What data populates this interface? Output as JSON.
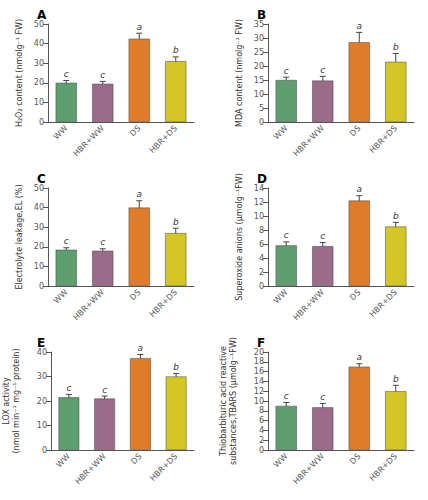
{
  "chart_data": [
    {
      "type": "bar",
      "title": "A",
      "ylabel": "H₂O₂ content (nmolg⁻¹ FW)",
      "categories": [
        "WW",
        "HBR+WW",
        "DS",
        "HBR+DS"
      ],
      "values": [
        20.0,
        19.5,
        42.5,
        31.0
      ],
      "errors": [
        1.2,
        1.2,
        2.8,
        2.2
      ],
      "annotations": [
        "c",
        "c",
        "a",
        "b"
      ],
      "colors": [
        "#5f9e6e",
        "#9b6b8a",
        "#e07b2a",
        "#d4c625"
      ],
      "ylim": [
        0,
        50
      ],
      "yticks": [
        0,
        10,
        20,
        30,
        40,
        50
      ],
      "grid": false
    },
    {
      "type": "bar",
      "title": "B",
      "ylabel": "MDA content (nmolg⁻¹ FW)",
      "categories": [
        "WW",
        "HBR+WW",
        "DS",
        "HBR+DS"
      ],
      "values": [
        15.0,
        14.8,
        28.5,
        21.5
      ],
      "errors": [
        1.0,
        1.5,
        3.5,
        3.0
      ],
      "annotations": [
        "c",
        "c",
        "a",
        "b"
      ],
      "colors": [
        "#5f9e6e",
        "#9b6b8a",
        "#e07b2a",
        "#d4c625"
      ],
      "ylim": [
        0,
        35
      ],
      "yticks": [
        0,
        5,
        10,
        15,
        20,
        25,
        30,
        35
      ],
      "grid": false
    },
    {
      "type": "bar",
      "title": "C",
      "ylabel": "Electrolyte leakage,EL (%)",
      "categories": [
        "WW",
        "HBR+WW",
        "DS",
        "HBR+DS"
      ],
      "values": [
        18.5,
        18.0,
        40.0,
        27.0
      ],
      "errors": [
        1.0,
        1.0,
        3.5,
        2.5
      ],
      "annotations": [
        "c",
        "c",
        "a",
        "b"
      ],
      "colors": [
        "#5f9e6e",
        "#9b6b8a",
        "#e07b2a",
        "#d4c625"
      ],
      "ylim": [
        0,
        50
      ],
      "yticks": [
        0,
        10,
        20,
        30,
        40,
        50
      ],
      "grid": false
    },
    {
      "type": "bar",
      "title": "D",
      "ylabel": "Superoxide anions (μmolg⁻¹FW)",
      "categories": [
        "WW",
        "HBR+WW",
        "DS",
        "HBR+DS"
      ],
      "values": [
        5.8,
        5.7,
        12.2,
        8.5
      ],
      "errors": [
        0.5,
        0.5,
        0.7,
        0.6
      ],
      "annotations": [
        "c",
        "c",
        "a",
        "b"
      ],
      "colors": [
        "#5f9e6e",
        "#9b6b8a",
        "#e07b2a",
        "#d4c625"
      ],
      "ylim": [
        0,
        14
      ],
      "yticks": [
        0,
        2,
        4,
        6,
        8,
        10,
        12,
        14
      ],
      "grid": false
    },
    {
      "type": "bar",
      "title": "E",
      "ylabel": "LOX activity\n(nmol min⁻¹ mg⁻¹ protein)",
      "categories": [
        "WW",
        "HBR+WW",
        "DS",
        "HBR+DS"
      ],
      "values": [
        21.5,
        21.0,
        37.5,
        30.0
      ],
      "errors": [
        1.2,
        1.0,
        1.5,
        1.2
      ],
      "annotations": [
        "c",
        "c",
        "a",
        "b"
      ],
      "colors": [
        "#5f9e6e",
        "#9b6b8a",
        "#e07b2a",
        "#d4c625"
      ],
      "ylim": [
        0,
        40
      ],
      "yticks": [
        0,
        10,
        20,
        30,
        40
      ],
      "grid": false
    },
    {
      "type": "bar",
      "title": "F",
      "ylabel": "Thiobarbituric acid reactive\nsubstances,TBARS (μmolg⁻¹FW)",
      "categories": [
        "WW",
        "HBR+WW",
        "DS",
        "HBR+DS"
      ],
      "values": [
        9.0,
        8.7,
        17.0,
        12.0
      ],
      "errors": [
        0.7,
        0.8,
        0.6,
        1.2
      ],
      "annotations": [
        "c",
        "c",
        "a",
        "b"
      ],
      "colors": [
        "#5f9e6e",
        "#9b6b8a",
        "#e07b2a",
        "#d4c625"
      ],
      "ylim": [
        0,
        20
      ],
      "yticks": [
        0,
        2,
        4,
        6,
        8,
        10,
        12,
        14,
        16,
        18,
        20
      ],
      "grid": false
    }
  ]
}
